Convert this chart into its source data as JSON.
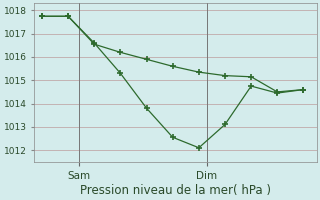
{
  "line1_x": [
    0,
    1,
    2,
    3,
    4,
    5,
    6,
    7,
    8,
    9,
    10
  ],
  "line1_y": [
    1017.75,
    1017.75,
    1016.6,
    1015.3,
    1013.8,
    1012.55,
    1012.1,
    1013.1,
    1014.75,
    1014.45,
    1014.6
  ],
  "line2_x": [
    0,
    1,
    2,
    3,
    4,
    5,
    6,
    7,
    8,
    9,
    10
  ],
  "line2_y": [
    1017.75,
    1017.75,
    1016.55,
    1016.2,
    1015.9,
    1015.6,
    1015.35,
    1015.2,
    1015.15,
    1014.5,
    1014.6
  ],
  "sam_x": 1.4,
  "dim_x": 6.3,
  "xlim": [
    -0.3,
    10.5
  ],
  "ylim": [
    1011.5,
    1018.3
  ],
  "yticks": [
    1012,
    1013,
    1014,
    1015,
    1016,
    1017,
    1018
  ],
  "line_color": "#2d6a2d",
  "bg_color": "#d4ecec",
  "grid_color": "#c0aaaa",
  "grid_color_v": "#c8c8c8",
  "xlabel": "Pression niveau de la mer( hPa )",
  "xlabel_fontsize": 8.5,
  "tick_fontsize": 6.5,
  "xtick_fontsize": 7.5
}
